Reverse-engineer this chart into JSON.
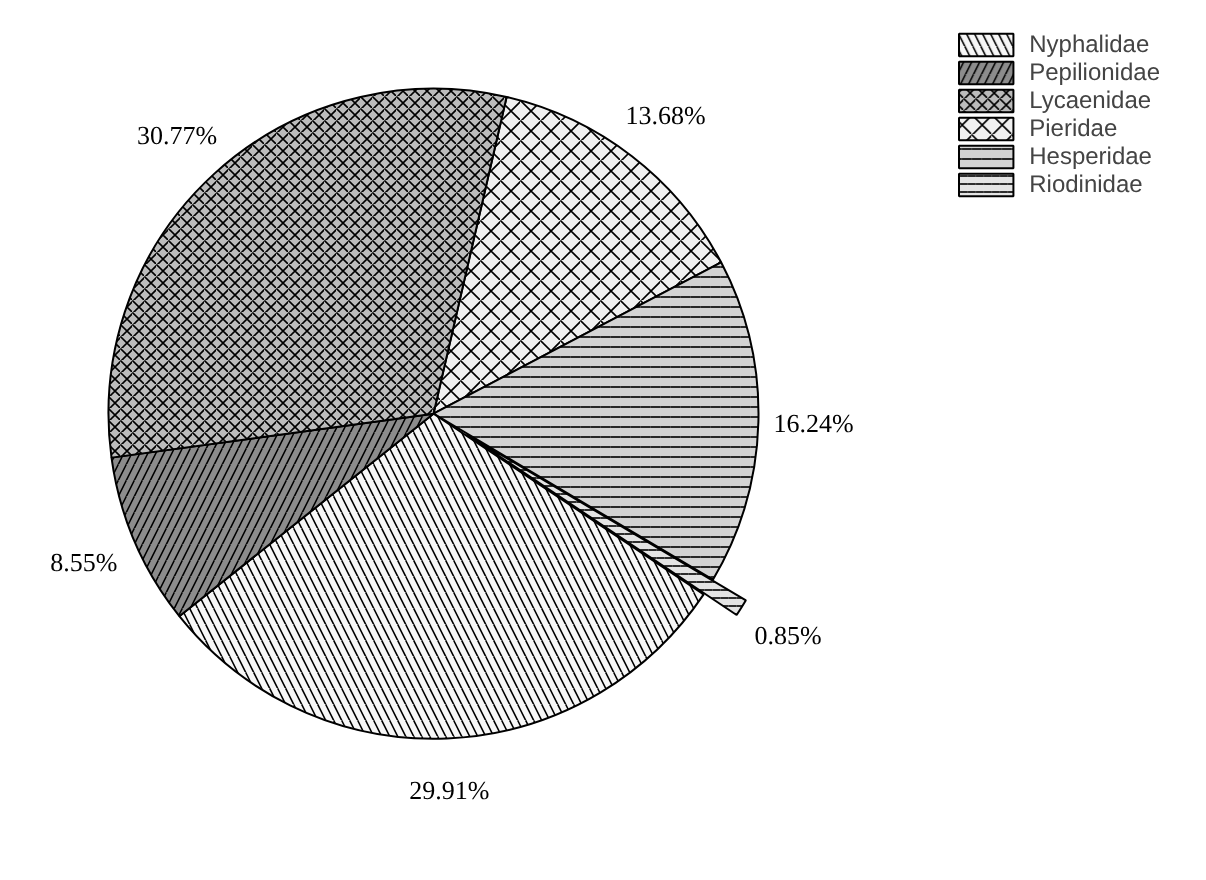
{
  "chart_data": {
    "type": "pie",
    "categories": [
      "Nyphalidae",
      "Pepilionidae",
      "Lycaenidae",
      "Pieridae",
      "Hesperidae",
      "Riodinidae"
    ],
    "values": [
      29.91,
      8.55,
      30.77,
      13.68,
      16.24,
      0.85
    ],
    "value_labels": [
      "29.91%",
      "8.55%",
      "30.77%",
      "13.68%",
      "16.24%",
      "0.85%"
    ],
    "colors": [
      "#f7f7f7",
      "#8c8c8c",
      "#bcbcbc",
      "#f0f0f0",
      "#d4d4d4",
      "#e4e4e4"
    ],
    "legend": "top right"
  }
}
